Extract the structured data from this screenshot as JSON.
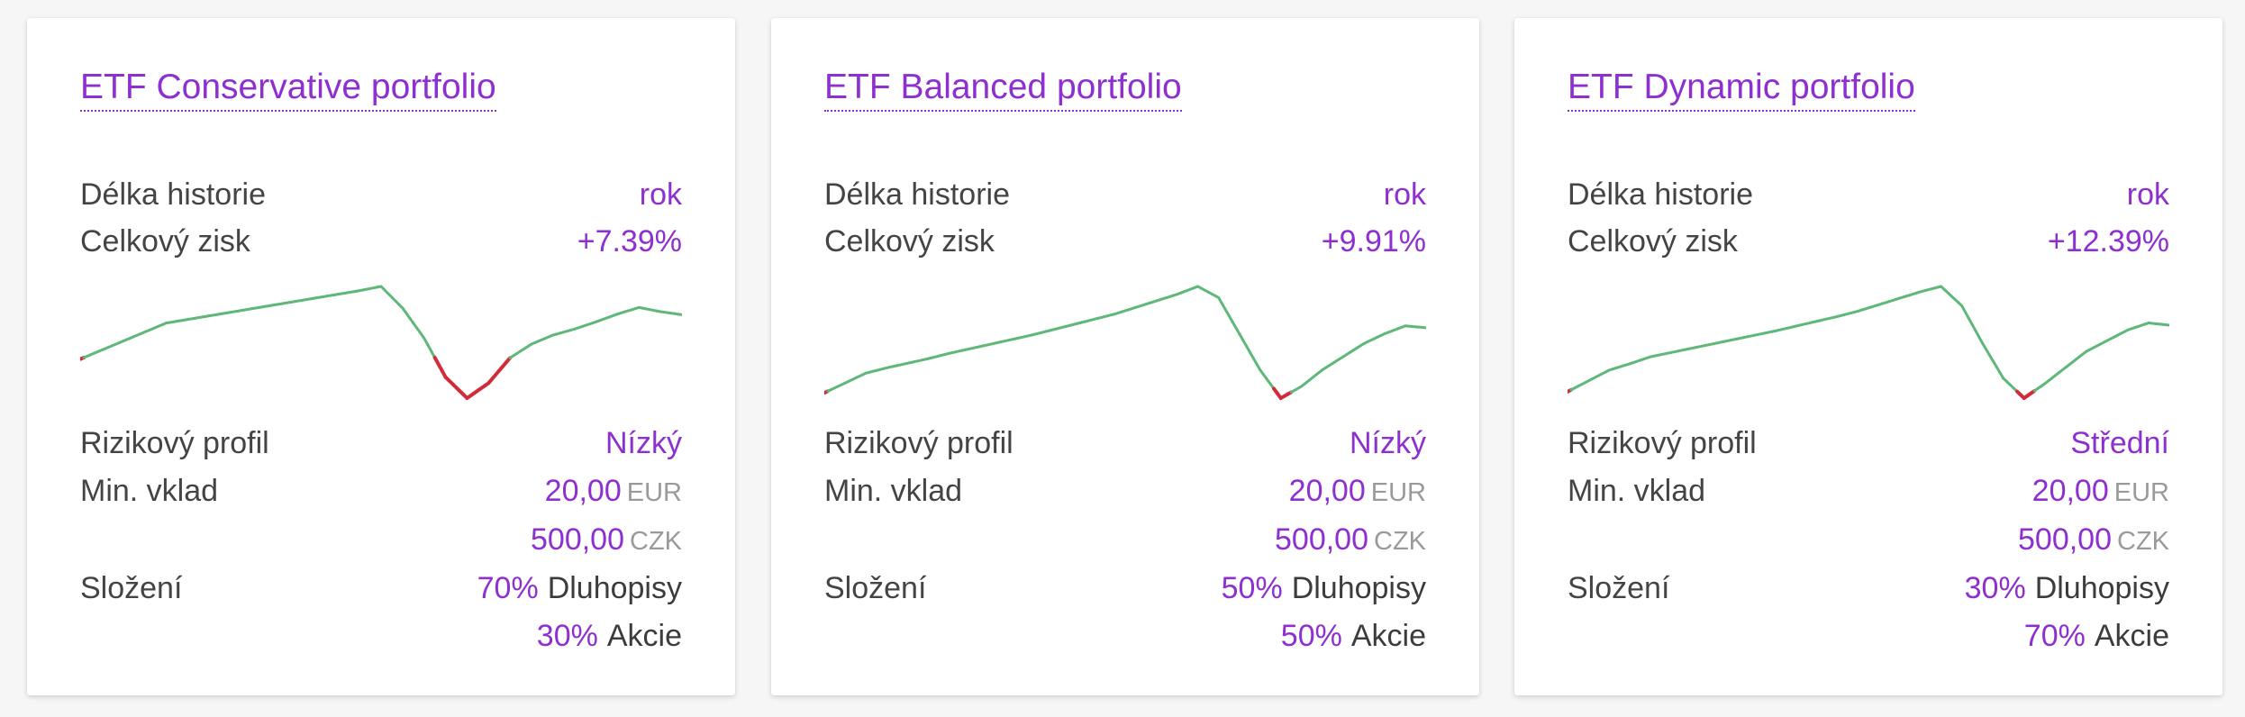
{
  "labels": {
    "history": "Délka historie",
    "gain": "Celkový zisk",
    "risk": "Rizikový profil",
    "min_deposit": "Min. vklad",
    "composition": "Složení"
  },
  "colors": {
    "accent": "#8e2fd0",
    "positive_line": "#5fb87a",
    "negative_line": "#d22b3c"
  },
  "cards": [
    {
      "title": "ETF Conservative portfolio",
      "history": "rok",
      "gain": "+7.39%",
      "risk": "Nízký",
      "min_eur_amount": "20,00",
      "min_eur_currency": "EUR",
      "min_czk_amount": "500,00",
      "min_czk_currency": "CZK",
      "bonds_pct": "70%",
      "bonds_label": "Dluhopisy",
      "stocks_pct": "30%",
      "stocks_label": "Akcie",
      "sparkline": {
        "values": [
          0.0,
          1.5,
          3.0,
          4.5,
          6.0,
          6.6,
          7.2,
          7.8,
          8.4,
          9.0,
          9.6,
          10.2,
          10.8,
          11.4,
          12.1,
          8.5,
          3.5,
          -3.0,
          -6.5,
          -4.0,
          0.2,
          2.5,
          4.0,
          5.0,
          6.2,
          7.5,
          8.6,
          7.9,
          7.39
        ]
      }
    },
    {
      "title": "ETF Balanced portfolio",
      "history": "rok",
      "gain": "+9.91%",
      "risk": "Nízký",
      "min_eur_amount": "20,00",
      "min_eur_currency": "EUR",
      "min_czk_amount": "500,00",
      "min_czk_currency": "CZK",
      "bonds_pct": "50%",
      "bonds_label": "Dluhopisy",
      "stocks_pct": "50%",
      "stocks_label": "Akcie",
      "sparkline": {
        "values": [
          0.0,
          1.5,
          3.0,
          3.8,
          4.5,
          5.2,
          6.0,
          6.7,
          7.4,
          8.1,
          8.8,
          9.6,
          10.4,
          11.2,
          12.0,
          13.0,
          14.0,
          15.0,
          16.2,
          14.5,
          9.0,
          3.5,
          -0.8,
          1.0,
          3.5,
          5.5,
          7.5,
          9.0,
          10.2,
          9.91
        ]
      }
    },
    {
      "title": "ETF Dynamic portfolio",
      "history": "rok",
      "gain": "+12.39%",
      "risk": "Střední",
      "min_eur_amount": "20,00",
      "min_eur_currency": "EUR",
      "min_czk_amount": "500,00",
      "min_czk_currency": "CZK",
      "bonds_pct": "30%",
      "bonds_label": "Dluhopisy",
      "stocks_pct": "70%",
      "stocks_label": "Akcie",
      "sparkline": {
        "values": [
          0.0,
          2.0,
          4.0,
          5.2,
          6.5,
          7.3,
          8.1,
          8.9,
          9.7,
          10.5,
          11.3,
          12.2,
          13.1,
          14.0,
          15.0,
          16.2,
          17.4,
          18.6,
          19.6,
          16.0,
          9.0,
          2.5,
          -1.2,
          1.5,
          4.5,
          7.5,
          9.5,
          11.5,
          12.8,
          12.39
        ]
      }
    }
  ]
}
